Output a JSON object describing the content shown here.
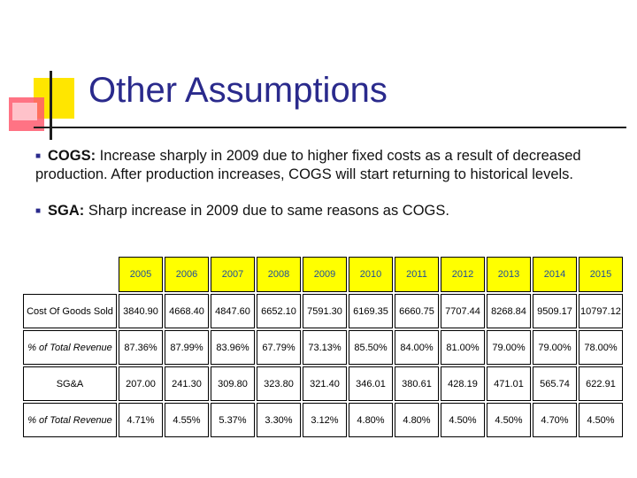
{
  "title": "Other Assumptions",
  "bullets": [
    {
      "term": "COGS:",
      "text": " Increase sharply in 2009 due to higher fixed costs as a result of decreased production. After production increases, COGS will start returning to historical levels."
    },
    {
      "term": "SGA:",
      "text": " Sharp increase in 2009 due to same reasons as COGS."
    }
  ],
  "table": {
    "years": [
      "2005",
      "2006",
      "2007",
      "2008",
      "2009",
      "2010",
      "2011",
      "2012",
      "2013",
      "2014",
      "2015"
    ],
    "year_colors": [
      "#1f4e9c",
      "#1f4e9c",
      "#1f4e9c",
      "#1f4e9c",
      "#1f4e9c",
      "#1f4e9c",
      "#1f4e9c",
      "#1f4e9c",
      "#1f4e9c",
      "#1f4e9c",
      "#1f4e9c"
    ],
    "rows": [
      {
        "label": "Cost Of Goods Sold",
        "italic": false,
        "values": [
          "3840.90",
          "4668.40",
          "4847.60",
          "6652.10",
          "7591.30",
          "6169.35",
          "6660.75",
          "7707.44",
          "8268.84",
          "9509.17",
          "10797.12"
        ]
      },
      {
        "label": "% of Total Revenue",
        "italic": true,
        "values": [
          "87.36%",
          "87.99%",
          "83.96%",
          "67.79%",
          "73.13%",
          "85.50%",
          "84.00%",
          "81.00%",
          "79.00%",
          "79.00%",
          "78.00%"
        ]
      },
      {
        "label": "SG&A",
        "italic": false,
        "values": [
          "207.00",
          "241.30",
          "309.80",
          "323.80",
          "321.40",
          "346.01",
          "380.61",
          "428.19",
          "471.01",
          "565.74",
          "622.91"
        ]
      },
      {
        "label": "% of Total Revenue",
        "italic": true,
        "values": [
          "4.71%",
          "4.55%",
          "5.37%",
          "3.30%",
          "3.12%",
          "4.80%",
          "4.80%",
          "4.50%",
          "4.50%",
          "4.70%",
          "4.50%"
        ]
      }
    ]
  },
  "colors": {
    "title": "#2a2a8c",
    "header_fill": "#ffff00",
    "accent_yellow": "#ffe600",
    "accent_red": "#ff5a6e"
  }
}
